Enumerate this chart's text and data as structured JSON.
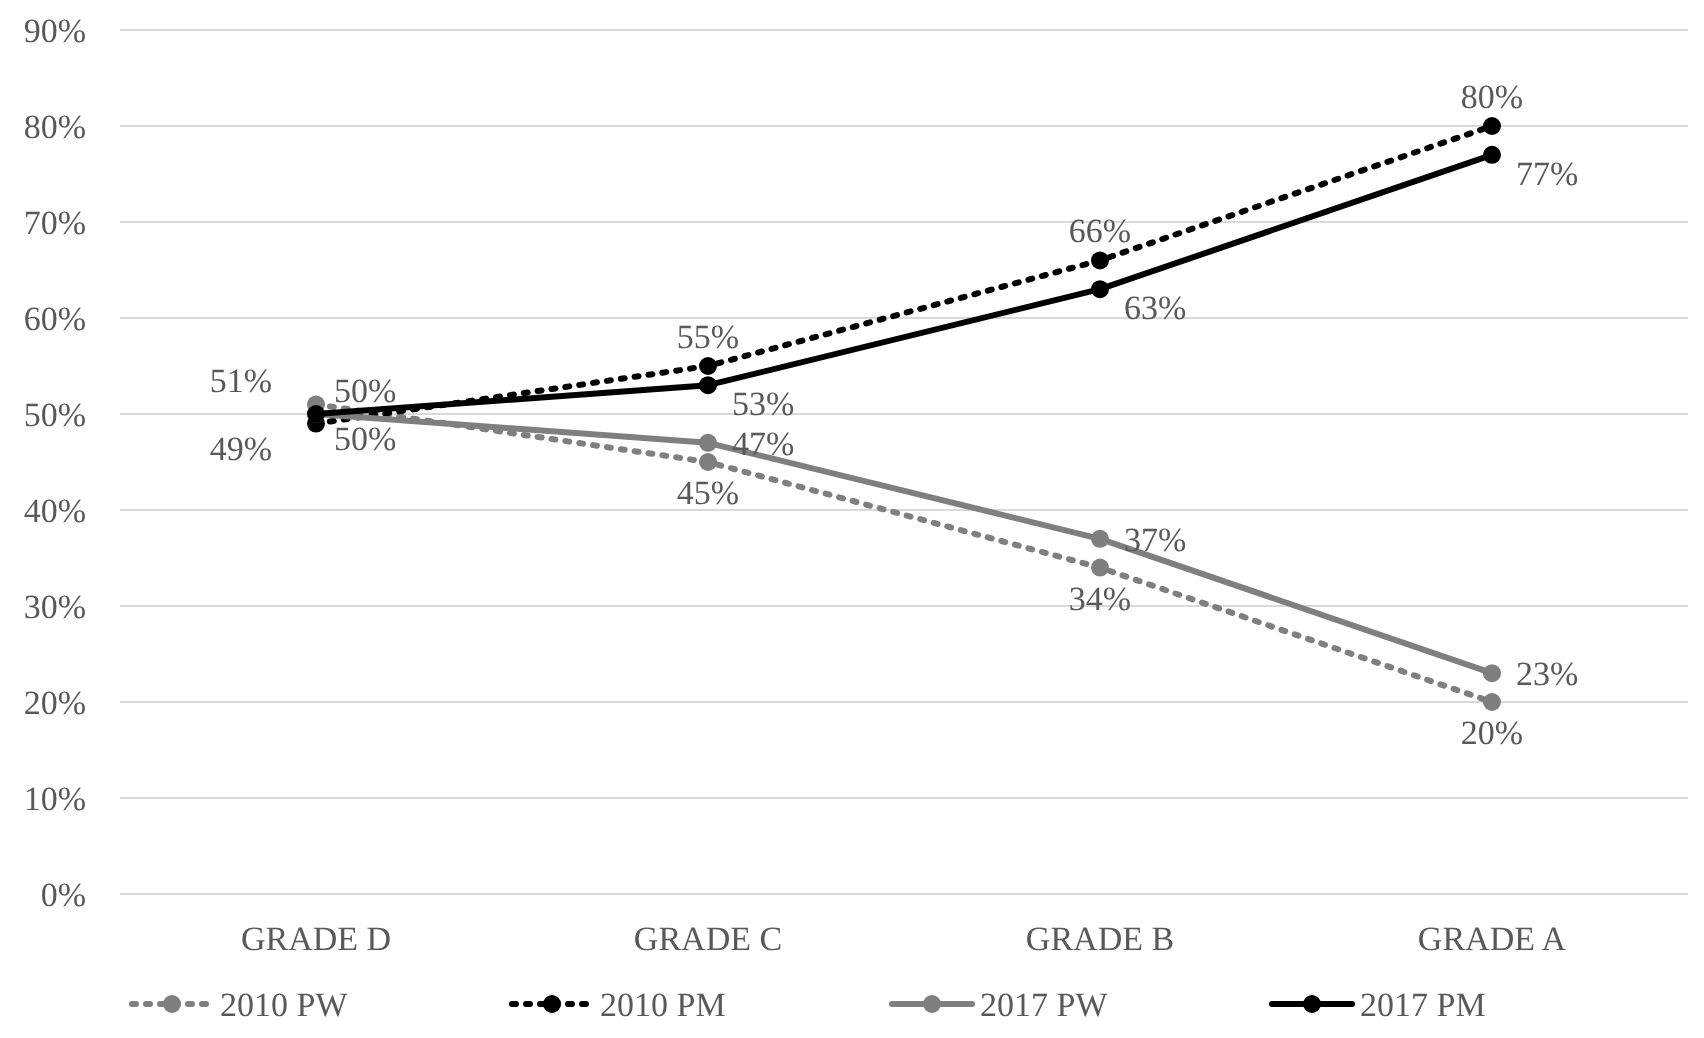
{
  "chart_data": {
    "type": "line",
    "categories": [
      "GRADE D",
      "GRADE C",
      "GRADE B",
      "GRADE A"
    ],
    "ylim": [
      0,
      90
    ],
    "yticks": [
      {
        "value": 0,
        "label": "0%"
      },
      {
        "value": 10,
        "label": "10%"
      },
      {
        "value": 20,
        "label": "20%"
      },
      {
        "value": 30,
        "label": "30%"
      },
      {
        "value": 40,
        "label": "40%"
      },
      {
        "value": 50,
        "label": "50%"
      },
      {
        "value": 60,
        "label": "60%"
      },
      {
        "value": 70,
        "label": "70%"
      },
      {
        "value": 80,
        "label": "80%"
      },
      {
        "value": 90,
        "label": "90%"
      }
    ],
    "grid": "y",
    "legend": "bottom",
    "marker": "circle",
    "series": [
      {
        "name": "2010 PW",
        "color": "#7f7f7f",
        "line_style": "dotted",
        "values": [
          51,
          45,
          34,
          20
        ],
        "value_labels": [
          "51%",
          "45%",
          "34%",
          "20%"
        ]
      },
      {
        "name": "2010 PM",
        "color": "#000000",
        "line_style": "dotted",
        "values": [
          49,
          55,
          66,
          80
        ],
        "value_labels": [
          "49%",
          "55%",
          "66%",
          "80%"
        ]
      },
      {
        "name": "2017 PW",
        "color": "#7f7f7f",
        "line_style": "solid",
        "values": [
          50,
          47,
          37,
          23
        ],
        "value_labels": [
          "50%",
          "47%",
          "37%",
          "23%"
        ]
      },
      {
        "name": "2017 PM",
        "color": "#000000",
        "line_style": "solid",
        "values": [
          50,
          53,
          63,
          77
        ],
        "value_labels": [
          "50%",
          "53%",
          "63%",
          "77%"
        ]
      }
    ]
  }
}
